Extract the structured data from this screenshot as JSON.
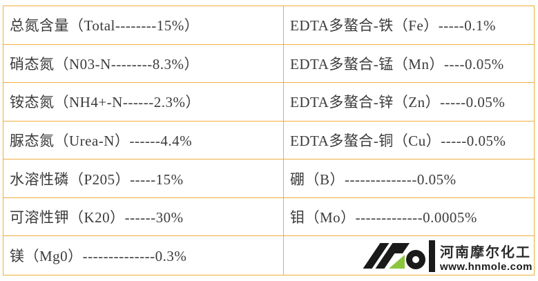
{
  "page": {
    "background_color": "#ffffff"
  },
  "table": {
    "border_color": "#F0AC3A",
    "text_color": "#3B3B3B",
    "left_rows": [
      "总氮含量（Total--------15%）",
      "硝态氮（N03-N--------8.3%）",
      "铵态氮（NH4+-N------2.3%）",
      "脲态氮（Urea-N）------4.4%",
      "水溶性磷（P205）-----15%",
      "可溶性钾（K20）------30%",
      "镁（Mg0）--------------0.3%"
    ],
    "right_rows": [
      "EDTA多螯合-铁（Fe）-----0.1%",
      "EDTA多螯合-锰（Mn）----0.05%",
      "EDTA多螯合-锌（Zn）-----0.05%",
      "EDTA多螯合-铜（Cu）-----0.05%",
      "硼（B）--------------0.05%",
      "钼（Mo）-------------0.0005%"
    ]
  },
  "logo": {
    "company_name": "河南摩尔化工",
    "website": "www.hnmole.com",
    "mark_black": "#1A1A1A",
    "mark_green": "#8CC63E"
  }
}
